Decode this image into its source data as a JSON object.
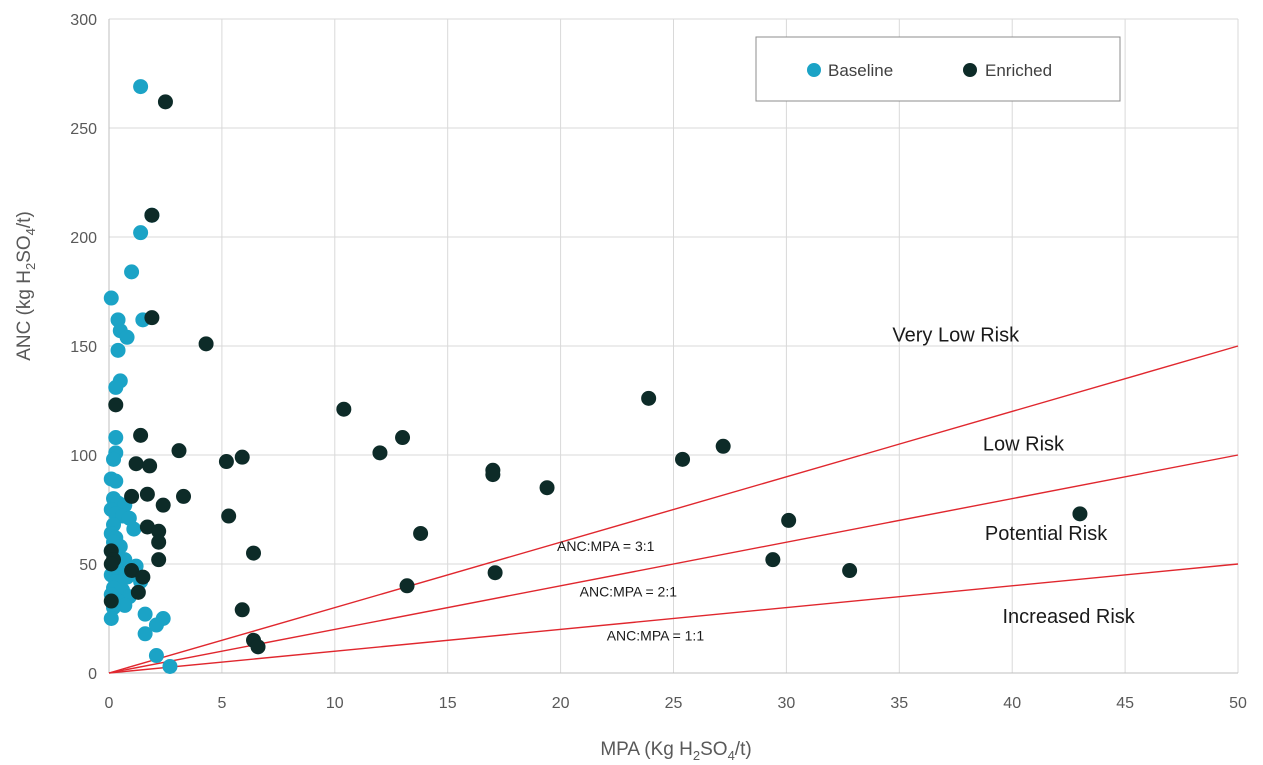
{
  "chart_data": {
    "type": "scatter",
    "xlabel": "MPA (Kg H2SO4/t)",
    "xlabel_parts": {
      "pre": "MPA (Kg H",
      "sub1": "2",
      "mid": "SO",
      "sub2": "4",
      "post": "/t)"
    },
    "ylabel": "ANC (kg H2SO4/t)",
    "ylabel_parts": {
      "pre": "ANC (kg H",
      "sub1": "2",
      "mid": "SO",
      "sub2": "4",
      "post": "/t)"
    },
    "xlim": [
      0,
      50
    ],
    "ylim": [
      0,
      300
    ],
    "xticks": [
      0,
      5,
      10,
      15,
      20,
      25,
      30,
      35,
      40,
      45,
      50
    ],
    "yticks": [
      0,
      50,
      100,
      150,
      200,
      250,
      300
    ],
    "grid": true,
    "legend_position": "top-right",
    "series": [
      {
        "name": "Baseline",
        "color": "#1ba3c6",
        "points": [
          [
            1.4,
            269
          ],
          [
            1.9,
            210
          ],
          [
            1.4,
            202
          ],
          [
            1.0,
            184
          ],
          [
            0.1,
            172
          ],
          [
            1.5,
            162
          ],
          [
            0.4,
            162
          ],
          [
            0.5,
            157
          ],
          [
            0.8,
            154
          ],
          [
            0.4,
            148
          ],
          [
            0.5,
            134
          ],
          [
            0.3,
            131
          ],
          [
            0.3,
            108
          ],
          [
            0.3,
            101
          ],
          [
            0.2,
            98
          ],
          [
            0.1,
            89
          ],
          [
            0.3,
            88
          ],
          [
            0.2,
            80
          ],
          [
            0.4,
            78
          ],
          [
            0.7,
            77
          ],
          [
            0.1,
            75
          ],
          [
            0.3,
            73
          ],
          [
            0.6,
            72
          ],
          [
            0.9,
            71
          ],
          [
            0.2,
            68
          ],
          [
            1.1,
            66
          ],
          [
            0.1,
            64
          ],
          [
            0.3,
            62
          ],
          [
            0.2,
            60
          ],
          [
            0.5,
            58
          ],
          [
            0.1,
            56
          ],
          [
            0.3,
            54
          ],
          [
            0.7,
            52
          ],
          [
            0.2,
            50
          ],
          [
            1.2,
            49
          ],
          [
            0.4,
            47
          ],
          [
            0.1,
            45
          ],
          [
            0.8,
            44
          ],
          [
            0.3,
            42
          ],
          [
            1.4,
            42
          ],
          [
            0.2,
            39
          ],
          [
            0.6,
            38
          ],
          [
            0.1,
            36
          ],
          [
            0.9,
            35
          ],
          [
            0.4,
            33
          ],
          [
            0.7,
            31
          ],
          [
            0.2,
            30
          ],
          [
            1.6,
            27
          ],
          [
            0.1,
            25
          ],
          [
            2.4,
            25
          ],
          [
            2.1,
            22
          ],
          [
            1.6,
            18
          ],
          [
            2.1,
            8
          ],
          [
            2.7,
            3
          ]
        ]
      },
      {
        "name": "Enriched",
        "color": "#0d2b28",
        "points": [
          [
            2.5,
            262
          ],
          [
            1.9,
            210
          ],
          [
            1.9,
            163
          ],
          [
            4.3,
            151
          ],
          [
            0.3,
            123
          ],
          [
            10.4,
            121
          ],
          [
            23.9,
            126
          ],
          [
            13.0,
            108
          ],
          [
            1.4,
            109
          ],
          [
            12.0,
            101
          ],
          [
            27.2,
            104
          ],
          [
            3.1,
            102
          ],
          [
            5.9,
            99
          ],
          [
            5.2,
            97
          ],
          [
            25.4,
            98
          ],
          [
            1.2,
            96
          ],
          [
            1.8,
            95
          ],
          [
            17.0,
            93
          ],
          [
            17.0,
            91
          ],
          [
            19.4,
            85
          ],
          [
            1.7,
            82
          ],
          [
            3.3,
            81
          ],
          [
            1.0,
            81
          ],
          [
            2.4,
            77
          ],
          [
            5.3,
            72
          ],
          [
            30.1,
            70
          ],
          [
            43.0,
            73
          ],
          [
            1.7,
            67
          ],
          [
            2.2,
            65
          ],
          [
            13.8,
            64
          ],
          [
            2.2,
            60
          ],
          [
            0.1,
            56
          ],
          [
            6.4,
            55
          ],
          [
            0.2,
            52
          ],
          [
            2.2,
            52
          ],
          [
            29.4,
            52
          ],
          [
            0.1,
            50
          ],
          [
            1.0,
            47
          ],
          [
            17.1,
            46
          ],
          [
            32.8,
            47
          ],
          [
            1.5,
            44
          ],
          [
            13.2,
            40
          ],
          [
            1.3,
            37
          ],
          [
            0.1,
            33
          ],
          [
            5.9,
            29
          ],
          [
            6.4,
            15
          ],
          [
            6.6,
            12
          ]
        ]
      }
    ],
    "reference_lines": [
      {
        "label": "ANC:MPA = 3:1",
        "slope": 3,
        "color": "#e0272e"
      },
      {
        "label": "ANC:MPA = 2:1",
        "slope": 2,
        "color": "#e0272e"
      },
      {
        "label": "ANC:MPA = 1:1",
        "slope": 1,
        "color": "#e0272e"
      }
    ],
    "zone_labels": [
      {
        "text": "Very Low Risk",
        "at": [
          37.5,
          152
        ]
      },
      {
        "text": "Low Risk",
        "at": [
          40.5,
          102
        ]
      },
      {
        "text": "Potential Risk",
        "at": [
          41.5,
          61
        ]
      },
      {
        "text": "Increased Risk",
        "at": [
          42.5,
          23
        ]
      }
    ],
    "ratio_labels": [
      {
        "text": "ANC:MPA = 3:1",
        "at": [
          22.0,
          56
        ]
      },
      {
        "text": "ANC:MPA = 2:1",
        "at": [
          23.0,
          35
        ]
      },
      {
        "text": "ANC:MPA = 1:1",
        "at": [
          24.2,
          15
        ]
      }
    ]
  }
}
